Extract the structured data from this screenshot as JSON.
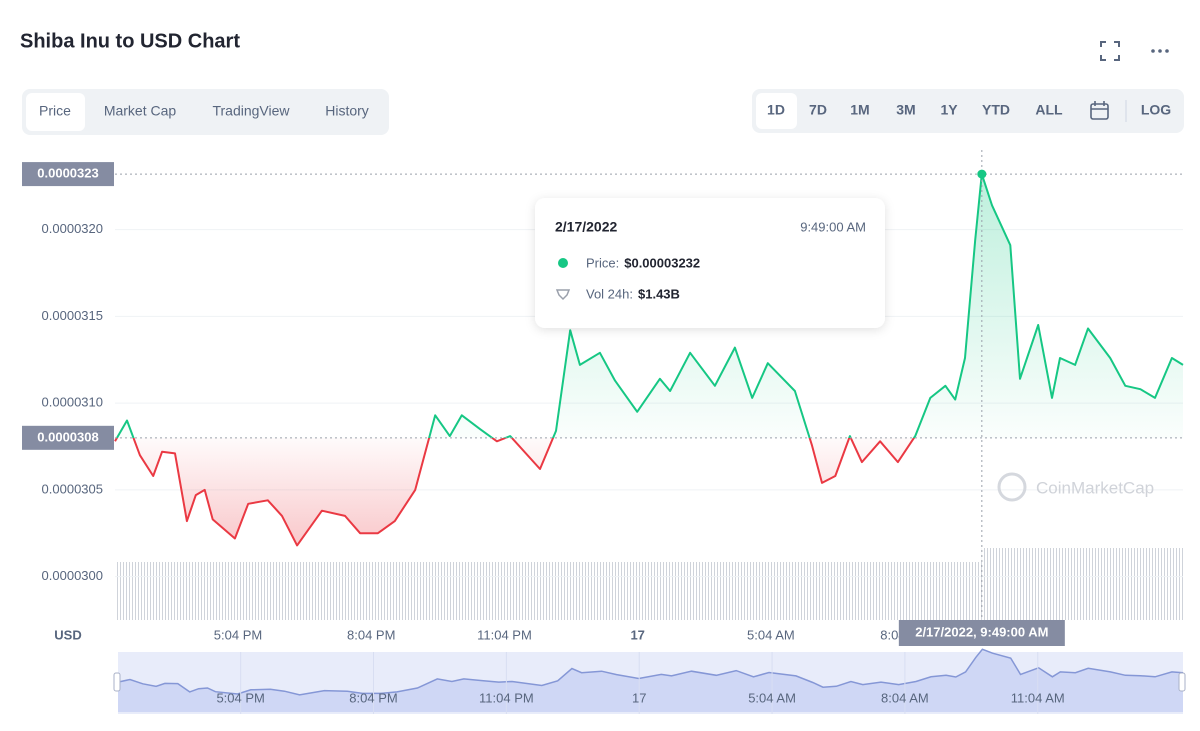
{
  "header": {
    "title": "Shiba Inu to USD Chart"
  },
  "tabs": [
    "Price",
    "Market Cap",
    "TradingView",
    "History"
  ],
  "ranges": [
    "1D",
    "7D",
    "1M",
    "3M",
    "1Y",
    "YTD",
    "ALL"
  ],
  "scale_button": "LOG",
  "watermark": "CoinMarketCap",
  "chart_data": {
    "type": "line",
    "currency_label": "USD",
    "color_up": "#16c784",
    "color_down": "#ea3943",
    "x": [
      14.3,
      14.57,
      14.86,
      15.16,
      15.36,
      15.65,
      15.92,
      16.12,
      16.32,
      16.5,
      17.0,
      17.3,
      17.74,
      18.06,
      18.4,
      18.96,
      19.48,
      19.82,
      20.22,
      20.6,
      21.06,
      21.51,
      21.84,
      22.11,
      22.52,
      22.9,
      23.2,
      23.87,
      24.23,
      24.55,
      24.77,
      25.22,
      25.56,
      26.06,
      26.57,
      26.8,
      27.25,
      27.81,
      28.26,
      28.65,
      29.0,
      29.61,
      29.99,
      30.22,
      30.52,
      30.85,
      31.12,
      31.53,
      31.93,
      32.32,
      32.66,
      33.0,
      33.22,
      33.44,
      33.67,
      33.82,
      34.05,
      34.46,
      34.68,
      35.09,
      35.4,
      35.58,
      35.92,
      36.21,
      36.71,
      37.05,
      37.39,
      37.72,
      38.1,
      38.35
    ],
    "values": [
      3.078e-05,
      3.09e-05,
      3.07e-05,
      3.058e-05,
      3.072e-05,
      3.071e-05,
      3.032e-05,
      3.047e-05,
      3.05e-05,
      3.033e-05,
      3.022e-05,
      3.042e-05,
      3.044e-05,
      3.035e-05,
      3.018e-05,
      3.038e-05,
      3.035e-05,
      3.025e-05,
      3.025e-05,
      3.032e-05,
      3.05e-05,
      3.093e-05,
      3.081e-05,
      3.093e-05,
      3.085e-05,
      3.078e-05,
      3.081e-05,
      3.062e-05,
      3.084e-05,
      3.142e-05,
      3.122e-05,
      3.129e-05,
      3.113e-05,
      3.095e-05,
      3.114e-05,
      3.107e-05,
      3.129e-05,
      3.11e-05,
      3.132e-05,
      3.103e-05,
      3.123e-05,
      3.107e-05,
      3.076e-05,
      3.054e-05,
      3.058e-05,
      3.081e-05,
      3.066e-05,
      3.078e-05,
      3.066e-05,
      3.081e-05,
      3.103e-05,
      3.11e-05,
      3.102e-05,
      3.126e-05,
      3.194e-05,
      3.232e-05,
      3.214e-05,
      3.191e-05,
      3.114e-05,
      3.145e-05,
      3.103e-05,
      3.126e-05,
      3.122e-05,
      3.143e-05,
      3.126e-05,
      3.11e-05,
      3.108e-05,
      3.103e-05,
      3.126e-05,
      3.122e-05
    ],
    "xlim": [
      14.3,
      38.35
    ],
    "ylim": [
      2.975e-05,
      3.243e-05
    ],
    "xticks": [
      {
        "value": 17.07,
        "label": "5:04 PM"
      },
      {
        "value": 20.07,
        "label": "8:04 PM"
      },
      {
        "value": 23.07,
        "label": "11:04 PM"
      },
      {
        "value": 26.07,
        "label": "17"
      },
      {
        "value": 29.07,
        "label": "5:04 AM"
      },
      {
        "value": 32.07,
        "label": "8:04 AM"
      },
      {
        "value": 35.07,
        "label": "11:04 AM"
      }
    ],
    "yticks": [
      {
        "value": 3e-05,
        "label": "0.0000300"
      },
      {
        "value": 3.05e-05,
        "label": "0.0000305"
      },
      {
        "value": 3.1e-05,
        "label": "0.0000310"
      },
      {
        "value": 3.15e-05,
        "label": "0.0000315"
      },
      {
        "value": 3.2e-05,
        "label": "0.0000320"
      }
    ],
    "grid": true,
    "baseline": 3.08e-05,
    "crosshair": {
      "x": 33.82,
      "x_label": "2/17/2022, 9:49:00 AM",
      "y": 3.232e-05,
      "y_label": "0.0000323"
    },
    "tooltip": {
      "date": "2/17/2022",
      "time": "9:49:00 AM",
      "price_label": "Price:",
      "price": "$0.00003232",
      "volume_label": "Vol 24h:",
      "volume": "$1.43B"
    }
  }
}
